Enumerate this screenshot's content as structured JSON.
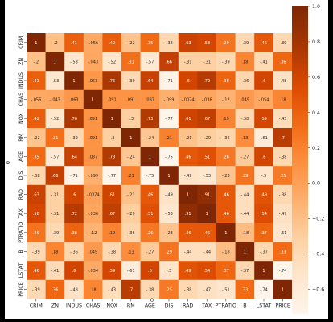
{
  "chart_data": {
    "type": "heatmap",
    "title": "",
    "xlabel": "0",
    "ylabel": "0",
    "x_labels": [
      "CRIM",
      "ZN",
      "INDUS",
      "CHAS",
      "NOX",
      "RM",
      "AGE",
      "DIS",
      "RAD",
      "TAX",
      "PTRATIO",
      "B",
      "LSTAT",
      "PRICE"
    ],
    "y_labels": [
      "CRIM",
      "ZN",
      "INDUS",
      "CHAS",
      "NOX",
      "RM",
      "AGE",
      "DIS",
      "RAD",
      "TAX",
      "PTRATIO",
      "B",
      "LSTAT",
      "PRICE"
    ],
    "values": [
      [
        1,
        -0.2,
        0.41,
        -0.056,
        0.42,
        -0.22,
        0.35,
        -0.38,
        0.63,
        0.58,
        0.29,
        -0.39,
        0.46,
        -0.39
      ],
      [
        -0.2,
        1,
        -0.53,
        -0.043,
        -0.52,
        0.31,
        -0.57,
        0.66,
        -0.31,
        -0.31,
        -0.39,
        0.18,
        -0.41,
        0.36
      ],
      [
        0.41,
        -0.53,
        1,
        0.063,
        0.76,
        -0.39,
        0.64,
        -0.71,
        0.6,
        0.72,
        0.38,
        -0.36,
        0.6,
        -0.48
      ],
      [
        -0.056,
        -0.043,
        0.063,
        1,
        0.091,
        0.091,
        0.087,
        -0.099,
        -0.0074,
        -0.036,
        -0.12,
        0.049,
        -0.054,
        0.18
      ],
      [
        0.42,
        -0.52,
        0.76,
        0.091,
        1,
        -0.3,
        0.73,
        -0.77,
        0.61,
        0.67,
        0.19,
        -0.38,
        0.59,
        -0.43
      ],
      [
        -0.22,
        0.31,
        -0.39,
        0.091,
        -0.3,
        1,
        -0.24,
        0.21,
        -0.21,
        -0.29,
        -0.36,
        0.13,
        -0.61,
        0.7
      ],
      [
        0.35,
        -0.57,
        0.64,
        0.087,
        0.73,
        -0.24,
        1,
        -0.75,
        0.46,
        0.51,
        0.26,
        -0.27,
        0.6,
        -0.38
      ],
      [
        -0.38,
        0.66,
        -0.71,
        -0.099,
        -0.77,
        0.21,
        -0.75,
        1,
        -0.49,
        -0.53,
        -0.23,
        0.29,
        -0.5,
        0.25
      ],
      [
        0.63,
        -0.31,
        0.6,
        -0.0074,
        0.61,
        -0.21,
        0.46,
        -0.49,
        1,
        0.91,
        0.46,
        -0.44,
        0.49,
        -0.38
      ],
      [
        0.58,
        -0.31,
        0.72,
        -0.036,
        0.67,
        -0.29,
        0.51,
        -0.53,
        0.91,
        1,
        0.46,
        -0.44,
        0.54,
        -0.47
      ],
      [
        0.29,
        -0.39,
        0.38,
        -0.12,
        0.19,
        -0.36,
        0.26,
        -0.23,
        0.46,
        0.46,
        1,
        -0.18,
        0.37,
        -0.51
      ],
      [
        -0.39,
        0.18,
        -0.36,
        0.049,
        -0.38,
        0.13,
        -0.27,
        0.29,
        -0.44,
        -0.44,
        -0.18,
        1,
        -0.37,
        0.33
      ],
      [
        0.46,
        -0.41,
        0.6,
        -0.054,
        0.59,
        -0.61,
        0.6,
        -0.5,
        0.49,
        0.54,
        0.37,
        -0.37,
        1,
        -0.74
      ],
      [
        -0.39,
        0.36,
        -0.48,
        0.18,
        -0.43,
        0.7,
        -0.38,
        0.25,
        -0.38,
        -0.47,
        -0.51,
        0.33,
        -0.74,
        1
      ]
    ],
    "colorbar": {
      "range": [
        -0.74,
        1.0
      ],
      "ticks": [
        "1.0",
        "0.8",
        "0.6",
        "0.4",
        "0.2",
        "0.0",
        "−0.2",
        "−0.4",
        "−0.6"
      ],
      "tick_values": [
        1.0,
        0.8,
        0.6,
        0.4,
        0.2,
        0.0,
        -0.2,
        -0.4,
        -0.6
      ],
      "colormap": "Oranges"
    },
    "grid": false,
    "annotations": "cell values shown in each cell"
  },
  "colors": {
    "window_background": "#000000",
    "panel_background": "#ffffff",
    "cmap_low": "#fff5eb",
    "cmap_high": "#7f2704"
  }
}
